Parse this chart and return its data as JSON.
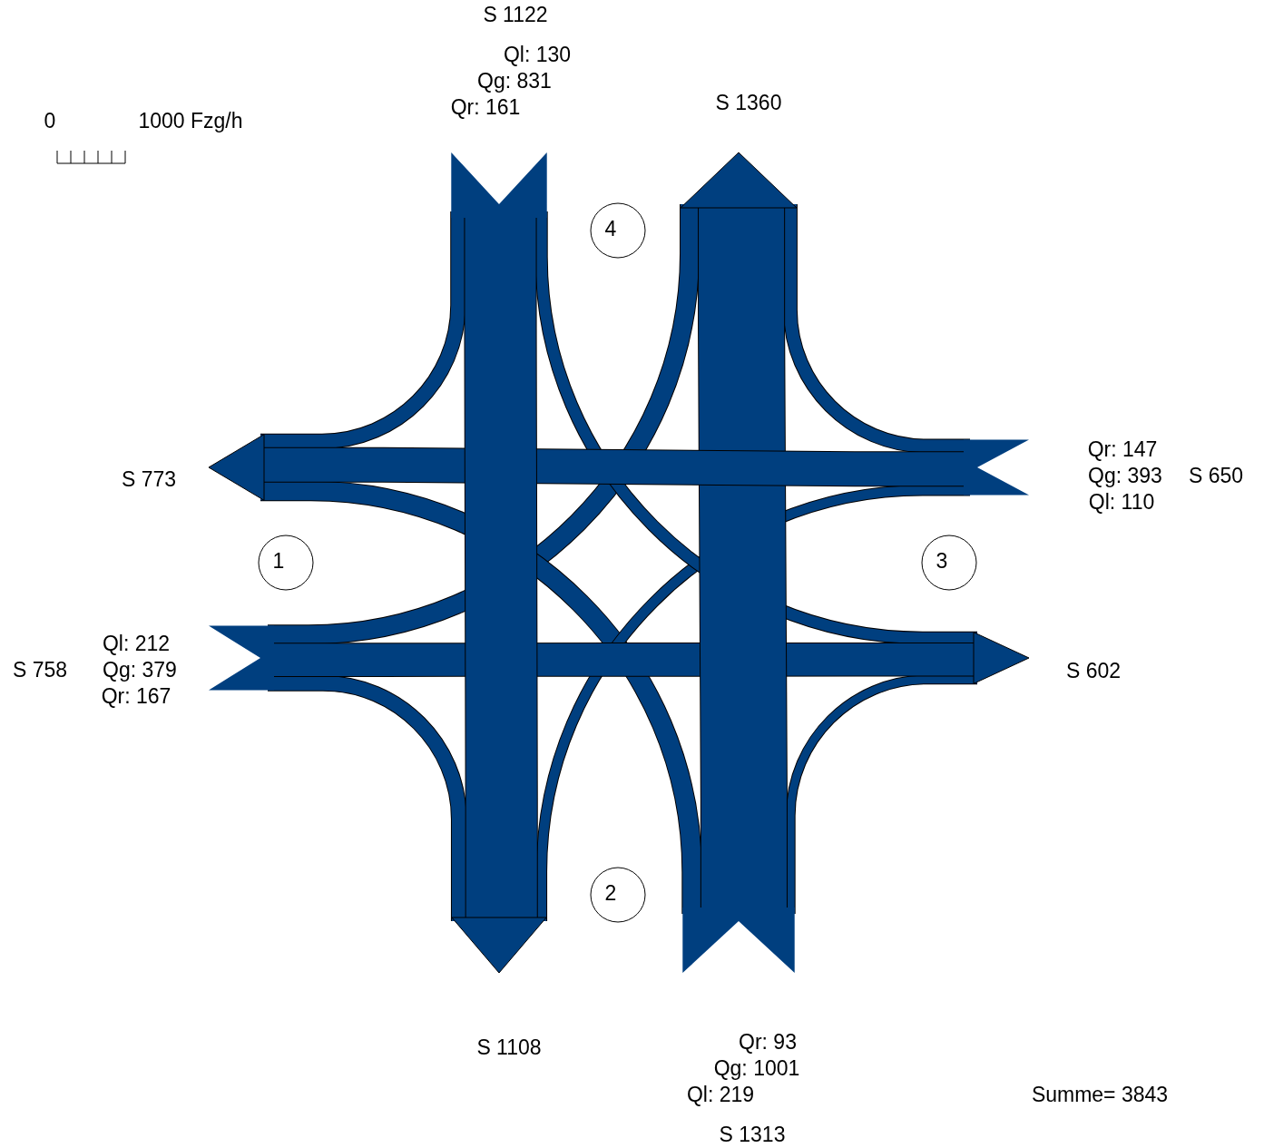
{
  "chart_data": {
    "type": "other",
    "categories": [
      "1",
      "2",
      "3",
      "4"
    ],
    "series": [
      {
        "color": "#003f7f",
        "values": [
          212,
          219,
          110,
          130
        ],
        "value_labels": [
          "Ql: 212",
          "Ql: 219",
          "Ql: 110",
          "Ql: 130"
        ]
      },
      {
        "color": "#003f7f",
        "values": [
          379,
          1001,
          393,
          831
        ],
        "value_labels": [
          "Qg: 379",
          "Qg: 1001",
          "Qg: 393",
          "Qg: 831"
        ]
      },
      {
        "color": "#003f7f",
        "values": [
          167,
          93,
          147,
          161
        ],
        "value_labels": [
          "Qr: 167",
          "Qr: 93",
          "Qr: 147",
          "Qr: 161"
        ]
      }
    ],
    "totals": [
      "S 758",
      "S 1313",
      "S 650",
      "S 1122"
    ],
    "annotations": [
      {
        "text": "S 773",
        "x": "1"
      },
      {
        "text": "S 1108",
        "x": "2"
      },
      {
        "text": "S 602",
        "x": "3"
      },
      {
        "text": "S 1360",
        "x": "4"
      },
      "0",
      "1000 Fzg/h",
      "Summe= 3843"
    ]
  }
}
